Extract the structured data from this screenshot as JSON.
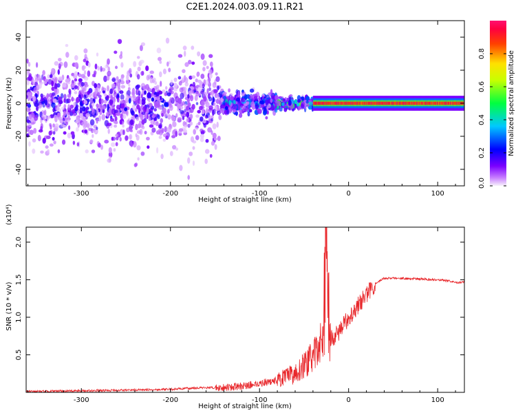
{
  "title": "C2E1.2024.003.09.11.R21",
  "colors": {
    "snr_line": "#e8262a",
    "axis": "#000000",
    "background": "#ffffff"
  },
  "chart_data": [
    {
      "type": "heatmap",
      "name": "spectrogram",
      "xlabel": "Height of straight line (km)",
      "ylabel": "Frequency (Hz)",
      "xlim": [
        -362,
        130
      ],
      "ylim": [
        -50,
        50
      ],
      "xticks": [
        -300,
        -200,
        -100,
        0,
        100
      ],
      "xtick_labels": [
        "-300",
        "-200",
        "-100",
        "0",
        "100"
      ],
      "yticks": [
        -40,
        -20,
        0,
        20,
        40
      ],
      "ytick_labels": [
        "-40",
        "-20",
        "0",
        "20",
        "40"
      ],
      "colorbar": {
        "label": "Normalized spectral amplitude",
        "range": [
          0,
          1
        ],
        "ticks": [
          0.0,
          0.2,
          0.4,
          0.6,
          0.8
        ],
        "tick_labels": [
          "0.0",
          "0.2",
          "0.4",
          "0.6",
          "0.8"
        ],
        "colormap": "hsv (magenta → blue → cyan → green → yellow → red)"
      },
      "regions": [
        {
          "x_range": [
            -362,
            -145
          ],
          "freq_spread": 50,
          "amplitude": 0.15,
          "note": "broadband noise"
        },
        {
          "x_range": [
            -145,
            -80
          ],
          "freq_spread": 12,
          "amplitude": 0.3
        },
        {
          "x_range": [
            -80,
            -40
          ],
          "freq_spread": 6,
          "amplitude": 0.45
        },
        {
          "x_range": [
            -40,
            130
          ],
          "freq_spread": 2,
          "amplitude": 0.9,
          "center_freq": 0,
          "note": "narrow carrier line"
        }
      ]
    },
    {
      "type": "line",
      "name": "snr",
      "xlabel": "Height of straight line (km)",
      "ylabel": "SNR (10 * v/v)",
      "y_multiplier": "(x10⁴)",
      "xlim": [
        -362,
        130
      ],
      "ylim": [
        0,
        2.2
      ],
      "xticks": [
        -300,
        -200,
        -100,
        0,
        100
      ],
      "xtick_labels": [
        "-300",
        "-200",
        "-100",
        "0",
        "100"
      ],
      "yticks": [
        0.5,
        1.0,
        1.5,
        2.0
      ],
      "ytick_labels": [
        "0.5",
        "1.0",
        "1.5",
        "2.0"
      ],
      "series": [
        {
          "x": [
            -362,
            -300,
            -250,
            -200,
            -170,
            -150,
            -120,
            -100,
            -80,
            -60,
            -45,
            -35,
            -28,
            -25,
            -22,
            -15,
            -8,
            0,
            10,
            20,
            30,
            40,
            60,
            80,
            100,
            115,
            120,
            130
          ],
          "y": [
            0.01,
            0.02,
            0.03,
            0.04,
            0.06,
            0.06,
            0.08,
            0.12,
            0.16,
            0.25,
            0.42,
            0.55,
            0.8,
            2.2,
            0.7,
            0.75,
            0.85,
            1.0,
            1.15,
            1.3,
            1.45,
            1.52,
            1.52,
            1.51,
            1.5,
            1.48,
            1.46,
            1.47
          ]
        }
      ]
    }
  ]
}
